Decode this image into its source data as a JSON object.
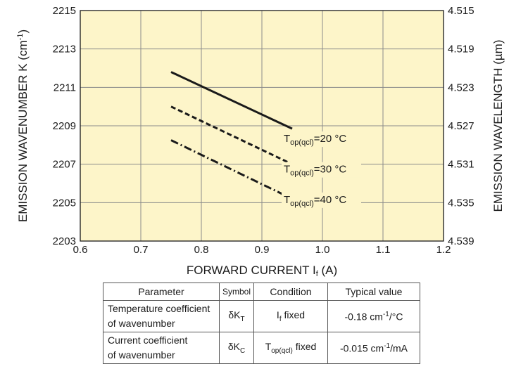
{
  "chart_data": {
    "type": "line",
    "xlabel": "FORWARD CURRENT I",
    "xlabel_sub": "f",
    "xlabel_unit": " (A)",
    "ylabel": "EMISSION WAVENUMBER K (cm",
    "ylabel_sup": "-1",
    "ylabel_end": ")",
    "y2label": "EMISSION WAVELENGTH (µm)",
    "xlim": [
      0.6,
      1.2
    ],
    "ylim": [
      2203,
      2215
    ],
    "x_ticks": [
      "0.6",
      "0.7",
      "0.8",
      "0.9",
      "1.0",
      "1.1",
      "1.2"
    ],
    "y_ticks": [
      "2203",
      "2205",
      "2207",
      "2209",
      "2211",
      "2213",
      "2215"
    ],
    "y2_ticks": [
      "4.539",
      "4.535",
      "4.531",
      "4.527",
      "4.523",
      "4.519",
      "4.515"
    ],
    "grid": true,
    "plot_background": "#fdf5c9",
    "series": [
      {
        "name_main": "T",
        "name_sub": "op(qcl)",
        "name_rest": "=20 °C",
        "style": "solid",
        "x": [
          0.75,
          0.95
        ],
        "y": [
          2211.8,
          2208.85
        ]
      },
      {
        "name_main": "T",
        "name_sub": "op(qcl)",
        "name_rest": "=30 °C",
        "style": "dashed",
        "x": [
          0.75,
          0.95
        ],
        "y": [
          2210.0,
          2207.0
        ]
      },
      {
        "name_main": "T",
        "name_sub": "op(qcl)",
        "name_rest": "=40 °C",
        "style": "dashdot",
        "x": [
          0.75,
          0.95
        ],
        "y": [
          2208.25,
          2205.2
        ]
      }
    ]
  },
  "table": {
    "headers": [
      "Parameter",
      "Symbol",
      "Condition",
      "Typical value"
    ],
    "rows": [
      {
        "param_line1": "Temperature coefficient",
        "param_line2": "of wavenumber",
        "symbol_main": "δK",
        "symbol_sub": "T",
        "cond_main": "I",
        "cond_sub": "f",
        "cond_rest": " fixed",
        "val_main": "-0.18 cm",
        "val_sup": "-1",
        "val_rest": "/°C"
      },
      {
        "param_line1": "Current coefficient",
        "param_line2": "of wavenumber",
        "symbol_main": "δK",
        "symbol_sub": "C",
        "cond_main": "T",
        "cond_sub": "op(qcl)",
        "cond_rest": " fixed",
        "val_main": "-0.015 cm",
        "val_sup": "-1",
        "val_rest": "/mA"
      }
    ]
  }
}
